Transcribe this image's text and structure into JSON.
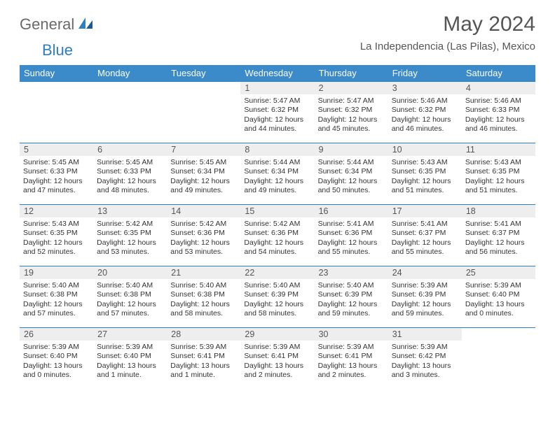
{
  "logo": {
    "part1": "General",
    "part2": "Blue"
  },
  "title": "May 2024",
  "location": "La Independencia (Las Pilas), Mexico",
  "colors": {
    "header_bg": "#3b8aca",
    "header_text": "#ffffff",
    "daybar_bg": "#eeeeee",
    "daybar_border": "#2f7fbf",
    "body_text": "#333333",
    "title_text": "#555555",
    "logo_gray": "#6a6a6a",
    "logo_blue": "#2f7fbf"
  },
  "day_names": [
    "Sunday",
    "Monday",
    "Tuesday",
    "Wednesday",
    "Thursday",
    "Friday",
    "Saturday"
  ],
  "weeks": [
    [
      null,
      null,
      null,
      {
        "n": "1",
        "sr": "5:47 AM",
        "ss": "6:32 PM",
        "d1": "12 hours",
        "d2": "and 44 minutes."
      },
      {
        "n": "2",
        "sr": "5:47 AM",
        "ss": "6:32 PM",
        "d1": "12 hours",
        "d2": "and 45 minutes."
      },
      {
        "n": "3",
        "sr": "5:46 AM",
        "ss": "6:32 PM",
        "d1": "12 hours",
        "d2": "and 46 minutes."
      },
      {
        "n": "4",
        "sr": "5:46 AM",
        "ss": "6:33 PM",
        "d1": "12 hours",
        "d2": "and 46 minutes."
      }
    ],
    [
      {
        "n": "5",
        "sr": "5:45 AM",
        "ss": "6:33 PM",
        "d1": "12 hours",
        "d2": "and 47 minutes."
      },
      {
        "n": "6",
        "sr": "5:45 AM",
        "ss": "6:33 PM",
        "d1": "12 hours",
        "d2": "and 48 minutes."
      },
      {
        "n": "7",
        "sr": "5:45 AM",
        "ss": "6:34 PM",
        "d1": "12 hours",
        "d2": "and 49 minutes."
      },
      {
        "n": "8",
        "sr": "5:44 AM",
        "ss": "6:34 PM",
        "d1": "12 hours",
        "d2": "and 49 minutes."
      },
      {
        "n": "9",
        "sr": "5:44 AM",
        "ss": "6:34 PM",
        "d1": "12 hours",
        "d2": "and 50 minutes."
      },
      {
        "n": "10",
        "sr": "5:43 AM",
        "ss": "6:35 PM",
        "d1": "12 hours",
        "d2": "and 51 minutes."
      },
      {
        "n": "11",
        "sr": "5:43 AM",
        "ss": "6:35 PM",
        "d1": "12 hours",
        "d2": "and 51 minutes."
      }
    ],
    [
      {
        "n": "12",
        "sr": "5:43 AM",
        "ss": "6:35 PM",
        "d1": "12 hours",
        "d2": "and 52 minutes."
      },
      {
        "n": "13",
        "sr": "5:42 AM",
        "ss": "6:35 PM",
        "d1": "12 hours",
        "d2": "and 53 minutes."
      },
      {
        "n": "14",
        "sr": "5:42 AM",
        "ss": "6:36 PM",
        "d1": "12 hours",
        "d2": "and 53 minutes."
      },
      {
        "n": "15",
        "sr": "5:42 AM",
        "ss": "6:36 PM",
        "d1": "12 hours",
        "d2": "and 54 minutes."
      },
      {
        "n": "16",
        "sr": "5:41 AM",
        "ss": "6:36 PM",
        "d1": "12 hours",
        "d2": "and 55 minutes."
      },
      {
        "n": "17",
        "sr": "5:41 AM",
        "ss": "6:37 PM",
        "d1": "12 hours",
        "d2": "and 55 minutes."
      },
      {
        "n": "18",
        "sr": "5:41 AM",
        "ss": "6:37 PM",
        "d1": "12 hours",
        "d2": "and 56 minutes."
      }
    ],
    [
      {
        "n": "19",
        "sr": "5:40 AM",
        "ss": "6:38 PM",
        "d1": "12 hours",
        "d2": "and 57 minutes."
      },
      {
        "n": "20",
        "sr": "5:40 AM",
        "ss": "6:38 PM",
        "d1": "12 hours",
        "d2": "and 57 minutes."
      },
      {
        "n": "21",
        "sr": "5:40 AM",
        "ss": "6:38 PM",
        "d1": "12 hours",
        "d2": "and 58 minutes."
      },
      {
        "n": "22",
        "sr": "5:40 AM",
        "ss": "6:39 PM",
        "d1": "12 hours",
        "d2": "and 58 minutes."
      },
      {
        "n": "23",
        "sr": "5:40 AM",
        "ss": "6:39 PM",
        "d1": "12 hours",
        "d2": "and 59 minutes."
      },
      {
        "n": "24",
        "sr": "5:39 AM",
        "ss": "6:39 PM",
        "d1": "12 hours",
        "d2": "and 59 minutes."
      },
      {
        "n": "25",
        "sr": "5:39 AM",
        "ss": "6:40 PM",
        "d1": "13 hours",
        "d2": "and 0 minutes."
      }
    ],
    [
      {
        "n": "26",
        "sr": "5:39 AM",
        "ss": "6:40 PM",
        "d1": "13 hours",
        "d2": "and 0 minutes."
      },
      {
        "n": "27",
        "sr": "5:39 AM",
        "ss": "6:40 PM",
        "d1": "13 hours",
        "d2": "and 1 minute."
      },
      {
        "n": "28",
        "sr": "5:39 AM",
        "ss": "6:41 PM",
        "d1": "13 hours",
        "d2": "and 1 minute."
      },
      {
        "n": "29",
        "sr": "5:39 AM",
        "ss": "6:41 PM",
        "d1": "13 hours",
        "d2": "and 2 minutes."
      },
      {
        "n": "30",
        "sr": "5:39 AM",
        "ss": "6:41 PM",
        "d1": "13 hours",
        "d2": "and 2 minutes."
      },
      {
        "n": "31",
        "sr": "5:39 AM",
        "ss": "6:42 PM",
        "d1": "13 hours",
        "d2": "and 3 minutes."
      },
      null
    ]
  ],
  "labels": {
    "sunrise": "Sunrise: ",
    "sunset": "Sunset: ",
    "daylight": "Daylight: "
  }
}
